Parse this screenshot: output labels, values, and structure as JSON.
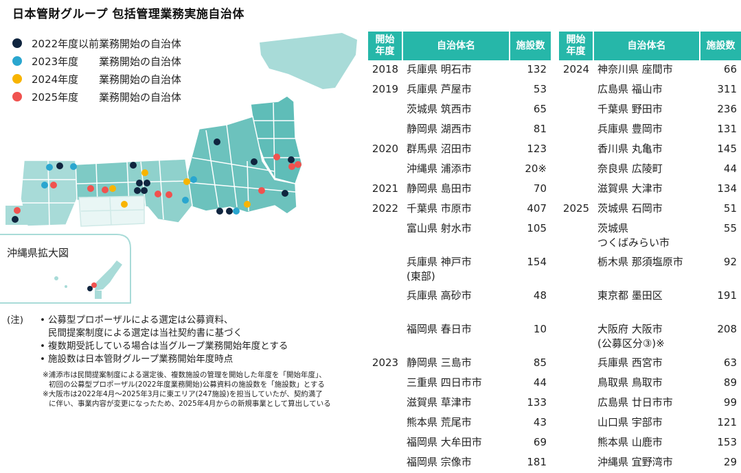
{
  "title": "日本管財グループ 包括管理業務実施自治体",
  "legend": [
    {
      "year": "2022年度以前",
      "label": "業務開始の自治体",
      "color": "#10253f"
    },
    {
      "year": "2023年度",
      "label": "業務開始の自治体",
      "color": "#2aa6cf"
    },
    {
      "year": "2024年度",
      "label": "業務開始の自治体",
      "color": "#f8b400"
    },
    {
      "year": "2025年度",
      "label": "業務開始の自治体",
      "color": "#f0524f"
    }
  ],
  "map": {
    "okinawa_label": "沖縄県拡大図"
  },
  "headers": {
    "year": "開始\n年度",
    "name": "自治体名",
    "count": "施設数"
  },
  "table_left": [
    {
      "year": "2018",
      "name": "兵庫県 明石市",
      "count": "132",
      "h": 1
    },
    {
      "year": "2019",
      "name": "兵庫県 芦屋市",
      "count": "53",
      "h": 1
    },
    {
      "year": "",
      "name": "茨城県 筑西市",
      "count": "65",
      "h": 1
    },
    {
      "year": "",
      "name": "静岡県 湖西市",
      "count": "81",
      "h": 1
    },
    {
      "year": "2020",
      "name": "群馬県 沼田市",
      "count": "123",
      "h": 1
    },
    {
      "year": "",
      "name": "沖縄県 浦添市",
      "count": "20※",
      "h": 1
    },
    {
      "year": "2021",
      "name": "静岡県 島田市",
      "count": "70",
      "h": 1
    },
    {
      "year": "2022",
      "name": "千葉県 市原市",
      "count": "407",
      "h": 1
    },
    {
      "year": "",
      "name": "富山県 射水市",
      "count": "105",
      "h": 2
    },
    {
      "year": "",
      "name": "兵庫県 神戸市\n(東部)",
      "count": "154",
      "h": 2
    },
    {
      "year": "",
      "name": "兵庫県 高砂市",
      "count": "48",
      "h": 2
    },
    {
      "year": "",
      "name": "福岡県 春日市",
      "count": "10",
      "h": 2
    },
    {
      "year": "2023",
      "name": "静岡県 三島市",
      "count": "85",
      "h": 1
    },
    {
      "year": "",
      "name": "三重県 四日市市",
      "count": "44",
      "h": 1
    },
    {
      "year": "",
      "name": "滋賀県 草津市",
      "count": "133",
      "h": 1
    },
    {
      "year": "",
      "name": "熊本県 荒尾市",
      "count": "43",
      "h": 1
    },
    {
      "year": "",
      "name": "福岡県 大牟田市",
      "count": "69",
      "h": 1
    },
    {
      "year": "",
      "name": "福岡県 宗像市",
      "count": "181",
      "h": 1
    }
  ],
  "table_right": [
    {
      "year": "2024",
      "name": "神奈川県 座間市",
      "count": "66",
      "h": 1
    },
    {
      "year": "",
      "name": "広島県 福山市",
      "count": "311",
      "h": 1
    },
    {
      "year": "",
      "name": "千葉県 野田市",
      "count": "236",
      "h": 1
    },
    {
      "year": "",
      "name": "兵庫県 豊岡市",
      "count": "131",
      "h": 1
    },
    {
      "year": "",
      "name": "香川県 丸亀市",
      "count": "145",
      "h": 1
    },
    {
      "year": "",
      "name": "奈良県 広陵町",
      "count": "44",
      "h": 1
    },
    {
      "year": "",
      "name": "滋賀県 大津市",
      "count": "134",
      "h": 1
    },
    {
      "year": "2025",
      "name": "茨城県 石岡市",
      "count": "51",
      "h": 1
    },
    {
      "year": "",
      "name": "茨城県\nつくばみらい市",
      "count": "55",
      "h": 2
    },
    {
      "year": "",
      "name": "栃木県 那須塩原市",
      "count": "92",
      "h": 2
    },
    {
      "year": "",
      "name": "東京都 墨田区",
      "count": "191",
      "h": 2
    },
    {
      "year": "",
      "name": "大阪府 大阪市\n(公募区分③)※",
      "count": "208",
      "h": 2
    },
    {
      "year": "",
      "name": "兵庫県 西宮市",
      "count": "63",
      "h": 1
    },
    {
      "year": "",
      "name": "鳥取県 鳥取市",
      "count": "89",
      "h": 1
    },
    {
      "year": "",
      "name": "広島県 廿日市市",
      "count": "99",
      "h": 1
    },
    {
      "year": "",
      "name": "山口県 宇部市",
      "count": "121",
      "h": 1
    },
    {
      "year": "",
      "name": "熊本県 山鹿市",
      "count": "153",
      "h": 1
    },
    {
      "year": "",
      "name": "沖縄県 宜野湾市",
      "count": "29",
      "h": 1
    }
  ],
  "notes": {
    "head": "(注)",
    "items": [
      "公募型プロポーザルによる選定は公募資料、\n民間提案制度による選定は当社契約書に基づく",
      "複数期受託している場合は当グループ業務開始年度とする",
      "施設数は日本管財グループ業務開始年度時点"
    ],
    "small": [
      "※浦添市は民間提案制度による選定後、複数施設の管理を開始した年度を「開始年度」、",
      "初回の公募型プロポーザル(2022年度業務開始)公募資料の施設数を「施設数」とする",
      "※大阪市は2022年4月～2025年3月に東エリア(247施設)を担当していたが、契約満了",
      "に伴い、事業内容が変更になったため、2025年4月からの新規事業として算出している"
    ]
  }
}
